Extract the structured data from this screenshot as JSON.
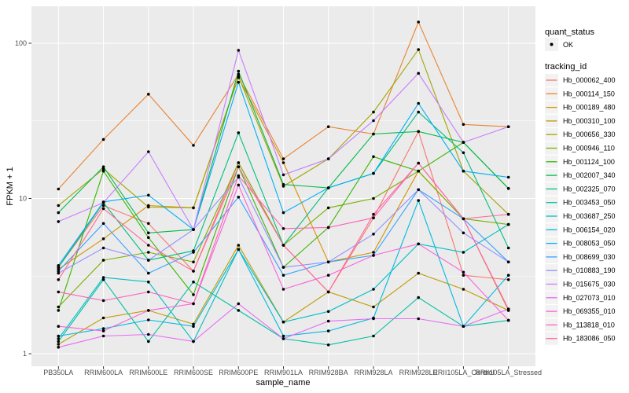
{
  "ui": {
    "y_axis_title": "FPKM + 1",
    "x_axis_title": "sample_name",
    "y_tick_labels": [
      "100",
      "10",
      "1"
    ],
    "legend": {
      "quant_status_title": "quant_status",
      "quant_status_items": [
        {
          "label": "OK",
          "marker": "black-point"
        }
      ],
      "tracking_id_title": "tracking_id"
    },
    "colors": {
      "panel_bg": "#EBEBEB",
      "grid": "#FFFFFF",
      "tick_mark": "#333333",
      "tick_label": "#4D4D4D",
      "text": "#000000",
      "legend_key_bg": "#F2F2F2",
      "point": "#000000"
    }
  },
  "chart_data": {
    "type": "line",
    "title": "",
    "xlabel": "sample_name",
    "ylabel": "FPKM + 1",
    "y_scale": "log10",
    "y_ticks": [
      1,
      10,
      100
    ],
    "y_minor_ticks": [
      3.162,
      31.62
    ],
    "ylim": [
      0.8,
      170
    ],
    "grid": true,
    "legend_position": "right",
    "quant_status": "OK",
    "point_marker": "black dot on every data point",
    "categories": [
      "PB350LA",
      "RRIM600LA",
      "RRIM600LE",
      "RRIM600SE",
      "RRIM600PE",
      "RRIM901LA",
      "RRIM928BA",
      "RRIM928LA",
      "RRIM928LE",
      "RRII105LA_Control",
      "RRII105LA_Stressed"
    ],
    "series": [
      {
        "name": "Hb_000062_400",
        "color": "#F8766D",
        "values": [
          3.6,
          9.0,
          6.9,
          3.4,
          17,
          5.0,
          2.5,
          7.5,
          27,
          3.2,
          3.0
        ]
      },
      {
        "name": "Hb_000114_150",
        "color": "#EA8331",
        "values": [
          11.5,
          24,
          47,
          22,
          63,
          18,
          29,
          26,
          137,
          30,
          29
        ]
      },
      {
        "name": "Hb_000189_480",
        "color": "#D89000",
        "values": [
          3.5,
          5.5,
          9.0,
          8.7,
          60,
          17,
          3.9,
          4.5,
          15,
          7.4,
          1.9
        ]
      },
      {
        "name": "Hb_000310_100",
        "color": "#C09B00",
        "values": [
          1.15,
          1.7,
          1.9,
          1.55,
          5.0,
          1.6,
          2.5,
          2.0,
          3.3,
          2.6,
          1.9
        ]
      },
      {
        "name": "Hb_000656_330",
        "color": "#A3A500",
        "values": [
          9.0,
          15.5,
          8.8,
          8.7,
          61,
          12,
          18,
          36,
          91,
          15,
          7.9
        ]
      },
      {
        "name": "Hb_000946_110",
        "color": "#7CAE00",
        "values": [
          2.0,
          4.0,
          4.5,
          3.9,
          17,
          5.0,
          8.7,
          10,
          15,
          7.4,
          6.8
        ]
      },
      {
        "name": "Hb_001124_100",
        "color": "#39B600",
        "values": [
          1.9,
          15,
          5.6,
          2.4,
          16,
          3.6,
          6.5,
          18.6,
          15,
          23,
          11.6
        ]
      },
      {
        "name": "Hb_002007_340",
        "color": "#00BB4E",
        "values": [
          8.1,
          16,
          6.0,
          6.3,
          66,
          12.3,
          11.7,
          26,
          27,
          23,
          11.6
        ]
      },
      {
        "name": "Hb_002325_070",
        "color": "#00BF7D",
        "values": [
          3.6,
          9.4,
          4.0,
          4.6,
          26.5,
          5.0,
          11.7,
          14.5,
          36,
          19.7,
          4.8
        ]
      },
      {
        "name": "Hb_003453_050",
        "color": "#00C1A3",
        "values": [
          1.2,
          3.0,
          1.2,
          2.9,
          1.9,
          1.25,
          1.14,
          1.3,
          2.3,
          1.5,
          1.64
        ]
      },
      {
        "name": "Hb_003687_250",
        "color": "#00BFC4",
        "values": [
          1.25,
          3.1,
          2.9,
          1.2,
          4.7,
          1.6,
          1.87,
          2.6,
          5.1,
          4.5,
          6.8
        ]
      },
      {
        "name": "Hb_006154_020",
        "color": "#00BAE0",
        "values": [
          1.3,
          1.45,
          1.65,
          1.5,
          4.7,
          1.3,
          1.4,
          1.7,
          9.7,
          1.5,
          3.2
        ]
      },
      {
        "name": "Hb_008053_050",
        "color": "#00B0F6",
        "values": [
          3.7,
          9.5,
          10.5,
          6.3,
          56,
          8.1,
          11.7,
          14.5,
          41,
          15,
          13.7
        ]
      },
      {
        "name": "Hb_008699_030",
        "color": "#35A2FF",
        "values": [
          3.4,
          6.9,
          3.3,
          4.5,
          10.2,
          3.2,
          3.9,
          4.3,
          11.4,
          7.4,
          3.9
        ]
      },
      {
        "name": "Hb_010883_190",
        "color": "#9590FF",
        "values": [
          3.3,
          4.8,
          4.0,
          6.3,
          13.7,
          3.6,
          3.9,
          5.9,
          11.4,
          6.0,
          3.9
        ]
      },
      {
        "name": "Hb_015675_030",
        "color": "#C77CFF",
        "values": [
          7.1,
          9.4,
          20,
          6.3,
          90,
          14.2,
          18,
          31.7,
          64,
          23,
          29
        ]
      },
      {
        "name": "Hb_027073_010",
        "color": "#E76BF3",
        "values": [
          1.1,
          1.3,
          1.33,
          1.2,
          2.1,
          1.25,
          1.62,
          1.68,
          1.68,
          1.5,
          1.94
        ]
      },
      {
        "name": "Hb_069355_010",
        "color": "#FA62DB",
        "values": [
          1.5,
          1.4,
          1.9,
          2.1,
          12.2,
          2.6,
          3.2,
          4.3,
          5.1,
          3.35,
          1.64
        ]
      },
      {
        "name": "Hb_113818_010",
        "color": "#FF62BC",
        "values": [
          2.5,
          2.2,
          2.5,
          2.1,
          14,
          6.4,
          6.5,
          7.5,
          16.9,
          7.4,
          1.94
        ]
      },
      {
        "name": "Hb_183086_050",
        "color": "#FF6A98",
        "values": [
          3.0,
          8.6,
          5.0,
          3.4,
          16,
          5.0,
          2.5,
          7.9,
          16.9,
          7.4,
          7.9
        ]
      }
    ]
  }
}
